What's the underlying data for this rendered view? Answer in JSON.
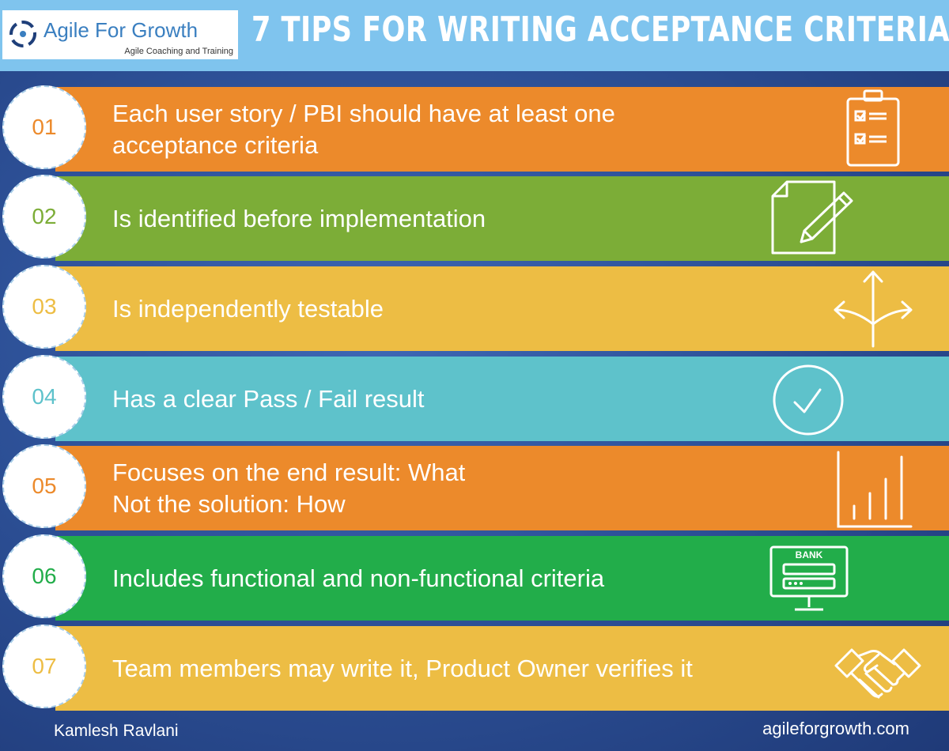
{
  "header": {
    "logo_name": "Agile For Growth",
    "logo_tagline": "Agile Coaching and Training",
    "title": "7 TIPS FOR WRITING ACCEPTANCE CRITERIA"
  },
  "tips": [
    {
      "number": "01",
      "lines": [
        "Each user story / PBI should have at least one",
        "acceptance criteria"
      ],
      "color": "#ec8a2b",
      "icon": "clipboard-checklist-icon"
    },
    {
      "number": "02",
      "lines": [
        "Is identified before implementation"
      ],
      "color": "#7cad37",
      "icon": "document-pencil-icon"
    },
    {
      "number": "03",
      "lines": [
        "Is independently testable"
      ],
      "color": "#edbd44",
      "icon": "arrows-split-icon"
    },
    {
      "number": "04",
      "lines": [
        "Has a clear Pass / Fail result"
      ],
      "color": "#5ec2cb",
      "icon": "circle-check-icon"
    },
    {
      "number": "05",
      "lines": [
        "Focuses on the end result: What",
        "Not the solution: How"
      ],
      "color": "#ec8a2b",
      "icon": "bar-chart-icon"
    },
    {
      "number": "06",
      "lines": [
        "Includes functional and non-functional criteria"
      ],
      "color": "#22ad4a",
      "icon": "bank-monitor-icon",
      "icon_label": "BANK"
    },
    {
      "number": "07",
      "lines": [
        "Team members may write it, Product Owner verifies it"
      ],
      "color": "#edbd44",
      "icon": "handshake-icon"
    }
  ],
  "footer": {
    "author": "Kamlesh Ravlani",
    "website": "agileforgrowth.com"
  }
}
